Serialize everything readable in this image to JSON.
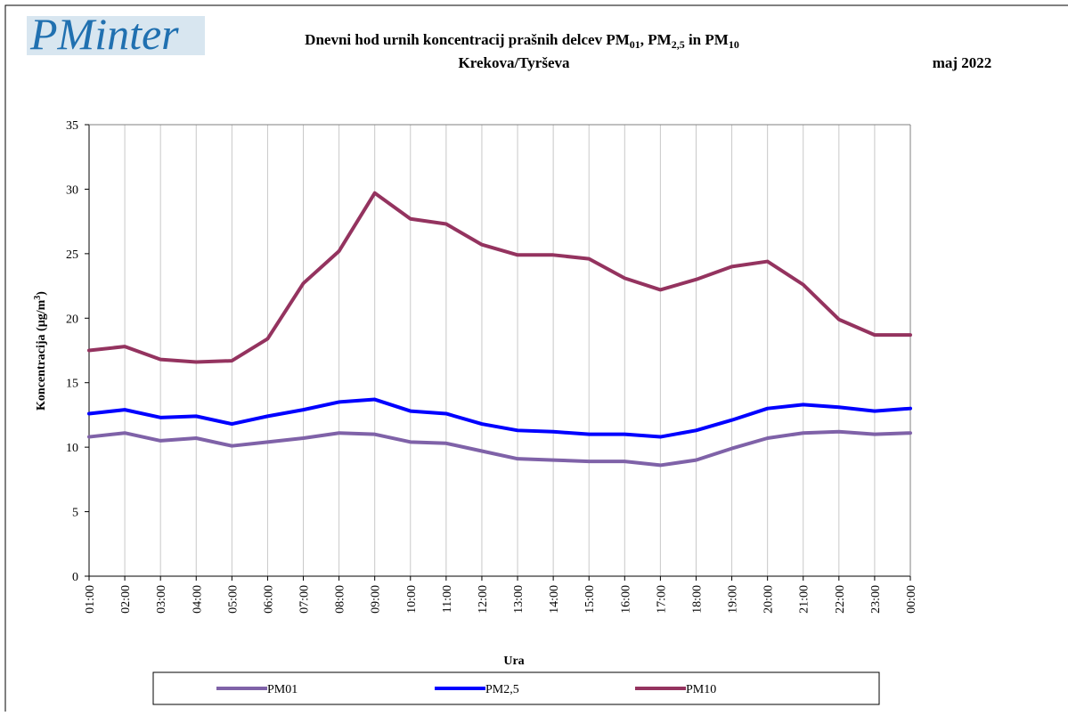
{
  "logo": "PMinter",
  "chart_data": {
    "type": "line",
    "title": [
      "Dnevni hod urnih koncentracij prašnih delcev PM",
      "01",
      ", PM",
      "2,5",
      " in PM",
      "10"
    ],
    "subtitle": "Krekova/Tyrševa",
    "period": "maj 2022",
    "x_label": "Ura",
    "y_label": [
      "Koncentracija  (µg/m",
      "3",
      ")"
    ],
    "categories": [
      "01:00",
      "02:00",
      "03:00",
      "04:00",
      "05:00",
      "06:00",
      "07:00",
      "08:00",
      "09:00",
      "10:00",
      "11:00",
      "12:00",
      "13:00",
      "14:00",
      "15:00",
      "16:00",
      "17:00",
      "18:00",
      "19:00",
      "20:00",
      "21:00",
      "22:00",
      "23:00",
      "00:00"
    ],
    "series": [
      {
        "name": "PM01",
        "color": "#7f62a8",
        "values": [
          10.8,
          11.1,
          10.5,
          10.7,
          10.1,
          10.4,
          10.7,
          11.1,
          11.0,
          10.4,
          10.3,
          9.7,
          9.1,
          9.0,
          8.9,
          8.9,
          8.6,
          9.0,
          9.9,
          10.7,
          11.1,
          11.2,
          11.0,
          11.1
        ]
      },
      {
        "name": "PM2,5",
        "color": "#0000ff",
        "values": [
          12.6,
          12.9,
          12.3,
          12.4,
          11.8,
          12.4,
          12.9,
          13.5,
          13.7,
          12.8,
          12.6,
          11.8,
          11.3,
          11.2,
          11.0,
          11.0,
          10.8,
          11.3,
          12.1,
          13.0,
          13.3,
          13.1,
          12.8,
          13.0
        ]
      },
      {
        "name": "PM10",
        "color": "#94335f",
        "values": [
          17.5,
          17.8,
          16.8,
          16.6,
          16.7,
          18.4,
          22.7,
          25.2,
          29.7,
          27.7,
          27.3,
          25.7,
          24.9,
          24.9,
          24.6,
          23.1,
          22.2,
          23.0,
          24.0,
          24.4,
          22.6,
          19.9,
          18.7,
          18.7
        ]
      }
    ],
    "ylim": [
      0,
      35
    ],
    "yticks": [
      0,
      5,
      10,
      15,
      20,
      25,
      30,
      35
    ],
    "grid": true,
    "legend": "bottom"
  }
}
